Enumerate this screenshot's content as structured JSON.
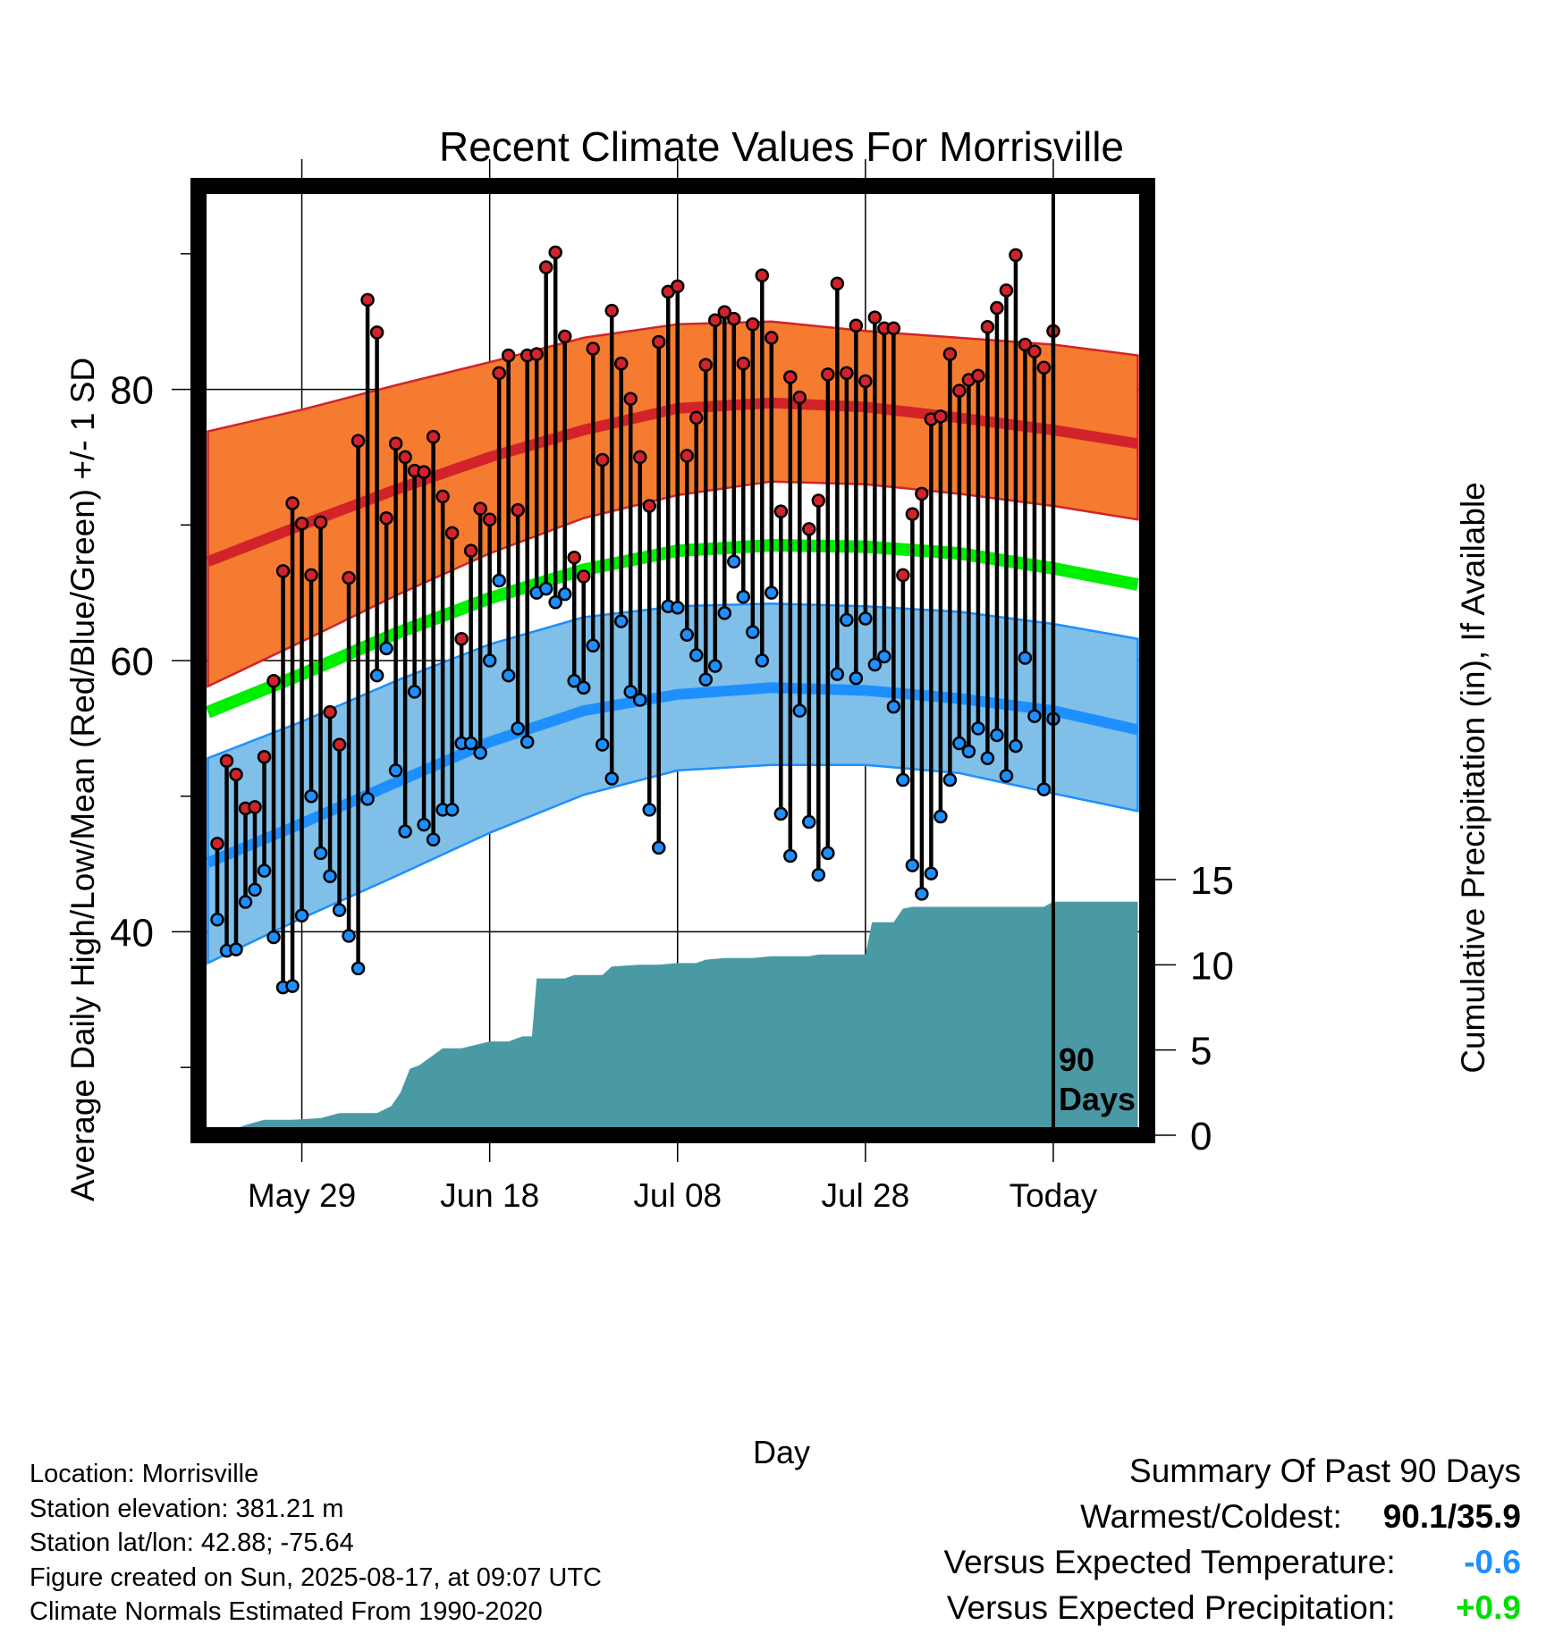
{
  "chart_data": {
    "type": "line",
    "title": "Recent Climate Values For Morrisville",
    "xlabel": "Day",
    "ylabel": "Average Daily High/Low/Mean (Red/Blue/Green) +/- 1 SD",
    "y2label": "Cumulative Precipitation (in), If Available",
    "x_tick_labels": [
      "May 29",
      "Jun 18",
      "Jul 08",
      "Jul 28",
      "Today"
    ],
    "x_tick_days": [
      10,
      30,
      50,
      70,
      90
    ],
    "x_range_days": [
      -1,
      100
    ],
    "ylim": [
      25,
      95
    ],
    "y_ticks": [
      40,
      60,
      80
    ],
    "y_minor_ticks": [
      30,
      50,
      70,
      90
    ],
    "y2_ticks": [
      0,
      5,
      10,
      15
    ],
    "y2_max_for_layout_scale": 55.7,
    "today_marker_label": [
      "90",
      "Days"
    ],
    "colors": {
      "high_band": "#f47b2f",
      "high_mean": "#d2232a",
      "mean": "#00ee00",
      "low_band": "#7fbfe8",
      "low_mean": "#1e8fff",
      "precip": "#4a9aa5",
      "high_point": "#d2232a",
      "low_point": "#1e8fff",
      "positive": "#00dd00",
      "negative": "#1e8fff"
    },
    "normal_high_mean": [
      [
        0,
        67.3
      ],
      [
        10,
        70.0
      ],
      [
        20,
        72.6
      ],
      [
        30,
        75.0
      ],
      [
        40,
        77.0
      ],
      [
        50,
        78.6
      ],
      [
        60,
        79.0
      ],
      [
        70,
        78.7
      ],
      [
        80,
        77.9
      ],
      [
        90,
        77.0
      ],
      [
        99,
        76.0
      ]
    ],
    "normal_high_upper": [
      [
        0,
        76.9
      ],
      [
        10,
        78.5
      ],
      [
        20,
        80.3
      ],
      [
        30,
        82.0
      ],
      [
        40,
        83.8
      ],
      [
        50,
        84.8
      ],
      [
        60,
        85.0
      ],
      [
        70,
        84.3
      ],
      [
        80,
        83.8
      ],
      [
        90,
        83.3
      ],
      [
        99,
        82.5
      ]
    ],
    "normal_high_lower": [
      [
        0,
        58.1
      ],
      [
        10,
        61.4
      ],
      [
        20,
        64.8
      ],
      [
        30,
        67.9
      ],
      [
        40,
        70.5
      ],
      [
        50,
        72.2
      ],
      [
        60,
        73.2
      ],
      [
        70,
        73.0
      ],
      [
        80,
        72.3
      ],
      [
        90,
        71.4
      ],
      [
        99,
        70.4
      ]
    ],
    "normal_mean": [
      [
        0,
        56.2
      ],
      [
        10,
        59.0
      ],
      [
        20,
        62.0
      ],
      [
        30,
        64.6
      ],
      [
        40,
        66.7
      ],
      [
        50,
        68.1
      ],
      [
        60,
        68.5
      ],
      [
        70,
        68.4
      ],
      [
        80,
        67.9
      ],
      [
        90,
        66.8
      ],
      [
        99,
        65.6
      ]
    ],
    "normal_low_mean": [
      [
        0,
        45.1
      ],
      [
        10,
        48.0
      ],
      [
        20,
        51.0
      ],
      [
        30,
        54.0
      ],
      [
        40,
        56.3
      ],
      [
        50,
        57.5
      ],
      [
        60,
        58.0
      ],
      [
        70,
        57.8
      ],
      [
        80,
        57.2
      ],
      [
        90,
        56.3
      ],
      [
        99,
        54.9
      ]
    ],
    "normal_low_upper": [
      [
        0,
        52.8
      ],
      [
        10,
        55.5
      ],
      [
        20,
        58.5
      ],
      [
        30,
        61.2
      ],
      [
        40,
        63.2
      ],
      [
        50,
        64.0
      ],
      [
        60,
        64.2
      ],
      [
        70,
        64.0
      ],
      [
        80,
        63.6
      ],
      [
        90,
        62.7
      ],
      [
        99,
        61.6
      ]
    ],
    "normal_low_lower": [
      [
        0,
        37.7
      ],
      [
        10,
        41.0
      ],
      [
        20,
        44.1
      ],
      [
        30,
        47.3
      ],
      [
        40,
        50.1
      ],
      [
        50,
        51.9
      ],
      [
        60,
        52.3
      ],
      [
        70,
        52.3
      ],
      [
        80,
        51.7
      ],
      [
        90,
        50.2
      ],
      [
        99,
        48.9
      ]
    ],
    "daily_high": [
      46.5,
      52.6,
      51.6,
      49.1,
      49.2,
      52.9,
      58.5,
      66.6,
      71.6,
      70.1,
      66.3,
      70.2,
      56.2,
      53.8,
      66.1,
      76.2,
      86.6,
      84.2,
      70.5,
      76.0,
      75.0,
      74.0,
      73.9,
      76.5,
      72.1,
      69.4,
      61.6,
      68.1,
      71.2,
      70.4,
      81.2,
      82.5,
      71.1,
      82.5,
      82.6,
      89.0,
      90.1,
      83.9,
      67.6,
      66.2,
      83.0,
      74.8,
      85.8,
      81.9,
      79.3,
      75.0,
      71.4,
      83.5,
      87.2,
      87.6,
      75.1,
      77.9,
      81.8,
      85.1,
      85.7,
      85.2,
      81.9,
      84.8,
      88.4,
      83.8,
      71.0,
      80.9,
      79.4,
      69.7,
      71.8,
      81.1,
      87.8,
      81.2,
      84.7,
      80.6,
      85.3,
      84.5,
      84.5,
      66.3,
      70.8,
      72.3,
      77.8,
      78.0,
      82.6,
      79.9,
      80.7,
      81.0,
      84.6,
      86.0,
      87.3,
      89.9,
      83.3,
      82.8,
      81.6,
      84.3
    ],
    "daily_low": [
      40.9,
      38.6,
      38.7,
      42.2,
      43.1,
      44.5,
      39.6,
      35.9,
      36.0,
      41.2,
      50.0,
      45.8,
      44.1,
      41.6,
      39.7,
      37.3,
      49.8,
      58.9,
      60.9,
      51.9,
      47.4,
      57.7,
      47.9,
      46.8,
      49.0,
      49.0,
      53.9,
      53.9,
      53.2,
      60.0,
      65.9,
      58.9,
      55.0,
      54.0,
      65.0,
      65.3,
      64.3,
      64.9,
      58.5,
      58.0,
      61.1,
      53.8,
      51.3,
      62.9,
      57.7,
      57.1,
      49.0,
      46.2,
      64.0,
      63.9,
      61.9,
      60.4,
      58.6,
      59.6,
      63.5,
      67.3,
      64.7,
      62.1,
      60.0,
      65.0,
      48.7,
      45.6,
      56.3,
      48.1,
      44.2,
      45.8,
      59.0,
      63.0,
      58.7,
      63.1,
      59.7,
      60.3,
      56.6,
      51.2,
      44.9,
      42.8,
      44.3,
      48.5,
      51.2,
      53.9,
      53.3,
      55.0,
      52.8,
      54.5,
      51.5,
      53.7,
      60.2,
      55.9,
      50.5,
      55.7
    ],
    "cumulative_precip": [
      [
        1,
        0
      ],
      [
        2.5,
        0.3
      ],
      [
        4,
        0.6
      ],
      [
        6,
        0.9
      ],
      [
        9,
        0.9
      ],
      [
        12,
        1.0
      ],
      [
        14,
        1.3
      ],
      [
        18,
        1.3
      ],
      [
        19.5,
        1.7
      ],
      [
        20.5,
        2.5
      ],
      [
        21.5,
        3.9
      ],
      [
        22.5,
        4.1
      ],
      [
        24,
        4.7
      ],
      [
        25,
        5.1
      ],
      [
        27,
        5.1
      ],
      [
        30,
        5.5
      ],
      [
        32,
        5.5
      ],
      [
        33.5,
        5.8
      ],
      [
        34.5,
        5.8
      ],
      [
        35,
        9.2
      ],
      [
        38,
        9.2
      ],
      [
        39,
        9.4
      ],
      [
        42,
        9.4
      ],
      [
        43,
        9.9
      ],
      [
        46,
        10.0
      ],
      [
        48,
        10.0
      ],
      [
        50,
        10.1
      ],
      [
        52,
        10.1
      ],
      [
        53,
        10.3
      ],
      [
        55,
        10.4
      ],
      [
        58,
        10.4
      ],
      [
        60,
        10.5
      ],
      [
        64,
        10.5
      ],
      [
        65,
        10.6
      ],
      [
        70,
        10.6
      ],
      [
        70.7,
        12.5
      ],
      [
        73,
        12.5
      ],
      [
        74,
        13.3
      ],
      [
        75,
        13.4
      ],
      [
        81,
        13.4
      ],
      [
        89,
        13.4
      ],
      [
        90,
        13.7
      ],
      [
        95,
        13.7
      ],
      [
        99,
        13.7
      ]
    ]
  },
  "info": {
    "location": "Location: Morrisville",
    "elevation": "Station elevation: 381.21 m",
    "latlon": "Station lat/lon: 42.88; -75.64",
    "created": "Figure created on Sun, 2025-08-17, at 09:07 UTC",
    "normals": "Climate Normals Estimated From 1990-2020"
  },
  "summary": {
    "title": "Summary Of Past 90 Days",
    "warm_cold_label": "Warmest/Coldest:",
    "warm_cold_value": "90.1/35.9",
    "temp_label": "Versus Expected Temperature:",
    "temp_value": "-0.6",
    "precip_label": "Versus Expected Precipitation:",
    "precip_value": "+0.9"
  }
}
